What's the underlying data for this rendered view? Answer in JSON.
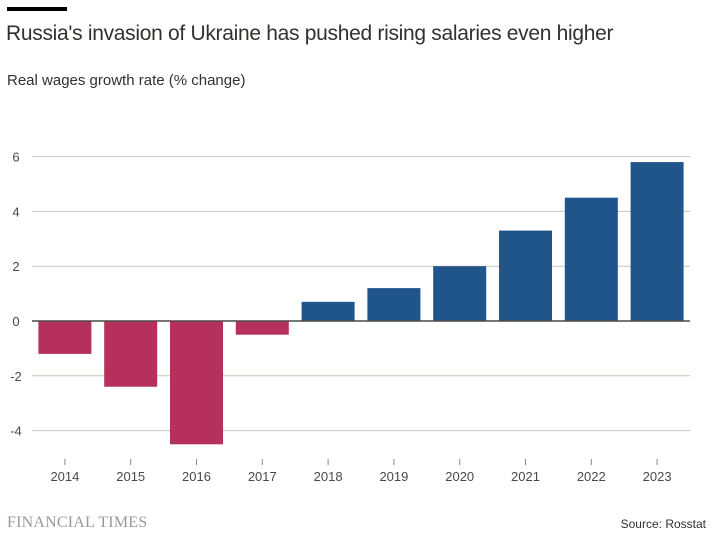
{
  "header": {
    "title": "Russia's invasion of Ukraine has pushed rising salaries even higher",
    "subtitle": "Real wages growth rate (% change)"
  },
  "footer": {
    "brand": "FINANCIAL TIMES",
    "source": "Source: Rosstat"
  },
  "colors": {
    "negative": "#b5305a",
    "positive": "#1f558b",
    "grid": "#c8c3bc",
    "zero_axis": "#4d4845"
  },
  "chart_data": {
    "type": "bar",
    "title": "Russia's invasion of Ukraine has pushed rising salaries even higher",
    "subtitle": "Real wages growth rate (% change)",
    "xlabel": "",
    "ylabel": "Real wages growth rate (% change)",
    "categories": [
      "2014",
      "2015",
      "2016",
      "2017",
      "2018",
      "2019",
      "2020",
      "2021",
      "2022",
      "2023"
    ],
    "values": [
      -1.2,
      -2.4,
      -4.5,
      -0.5,
      0.7,
      1.2,
      2.0,
      3.3,
      4.5,
      5.8
    ],
    "ylim": [
      -5,
      7
    ],
    "yticks": [
      6,
      4,
      2,
      0,
      -2,
      -4
    ],
    "ytick_labels": [
      "6",
      "4",
      "2",
      "0",
      "-2",
      "-4"
    ],
    "grid": true,
    "legend": "none",
    "source": "Source: Rosstat"
  }
}
